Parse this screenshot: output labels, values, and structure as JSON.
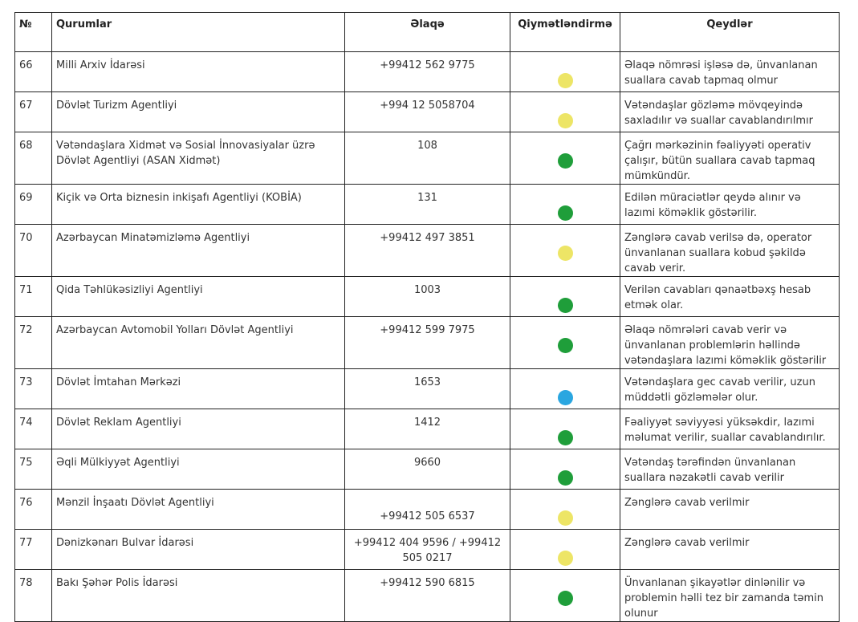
{
  "headers": {
    "num": "№",
    "org": "Qurumlar",
    "contact": "Əlaqə",
    "rating": "Qiymətləndirmə",
    "notes": "Qeydlər"
  },
  "rows": [
    {
      "num": "66",
      "org": "Milli Arxiv İdarəsi",
      "contact": "+99412 562 9775",
      "rating": "yellow",
      "note": "Əlaqə nömrəsi işləsə də, ünvanlanan suallara cavab tapmaq olmur"
    },
    {
      "num": "67",
      "org": "Dövlət Turizm Agentliyi",
      "contact": "+994 12 5058704",
      "rating": "yellow",
      "note": "Vətəndaşlar gözləmə mövqeyində saxladılır və suallar cavablandırılmır"
    },
    {
      "num": "68",
      "org": "Vətəndaşlara Xidmət və Sosial İnnovasiyalar üzrə Dövlət Agentliyi (ASAN Xidmət)",
      "contact": "108",
      "rating": "green",
      "note": "Çağrı mərkəzinin fəaliyyəti operativ çalışır, bütün suallara cavab tapmaq mümkündür."
    },
    {
      "num": "69",
      "org": "Kiçik və Orta biznesin inkişafı Agentliyi (KOBİA)",
      "contact": "131",
      "rating": "green",
      "note": "Edilən müraciətlər qeydə alınır və lazımi köməklik göstərilir."
    },
    {
      "num": "70",
      "org": "Azərbaycan Minatəmizləmə Agentliyi",
      "contact": "+99412 497 3851",
      "rating": "yellow",
      "note": "Zənglərə cavab verilsə də, operator ünvanlanan suallara kobud şəkildə cavab verir."
    },
    {
      "num": "71",
      "org": "Qida Təhlükəsizliyi Agentliyi",
      "contact": "1003",
      "rating": "green",
      "note": "Verilən cavabları qənaətbəxş hesab etmək olar."
    },
    {
      "num": "72",
      "org": "Azərbaycan Avtomobil Yolları Dövlət Agentliyi",
      "contact": "+99412 599 7975",
      "rating": "green",
      "note": "Əlaqə nömrələri cavab verir və ünvanlanan problemlərin həllində vətəndaşlara lazımi köməklik göstərilir"
    },
    {
      "num": "73",
      "org": "Dövlət İmtahan Mərkəzi",
      "contact": "1653",
      "rating": "blue",
      "note": "Vətəndaşlara gec cavab verilir, uzun müddətli gözləmələr olur."
    },
    {
      "num": "74",
      "org": "Dövlət Reklam Agentliyi",
      "contact": "1412",
      "rating": "green",
      "note": "Fəaliyyət səviyyəsi yüksəkdir, lazımi məlumat verilir, suallar cavablandırılır."
    },
    {
      "num": "75",
      "org": "Əqli Mülkiyyət Agentliyi",
      "contact": "9660",
      "rating": "green",
      "note": "Vətəndaş tərəfindən ünvanlanan suallara nəzakətli cavab verilir"
    },
    {
      "num": "76",
      "org": "Mənzil İnşaatı Dövlət Agentliyi",
      "contact": "+99412 505 6537",
      "rating": "yellow",
      "note": "Zənglərə cavab verilmir"
    },
    {
      "num": "77",
      "org": "Dənizkənarı Bulvar İdarəsi",
      "contact": "+99412 404 9596 / +99412 505 0217",
      "rating": "yellow",
      "note": "Zənglərə cavab verilmir"
    },
    {
      "num": "78",
      "org": "Bakı Şəhər Polis İdarəsi",
      "contact": "+99412 590 6815",
      "rating": "green",
      "note": "Ünvanlanan şikayətlər dinlənilir və problemin həlli tez bir zamanda təmin olunur"
    }
  ],
  "colors": {
    "yellow": "#ede566",
    "green": "#1f9e3a",
    "blue": "#2aa6e0"
  }
}
